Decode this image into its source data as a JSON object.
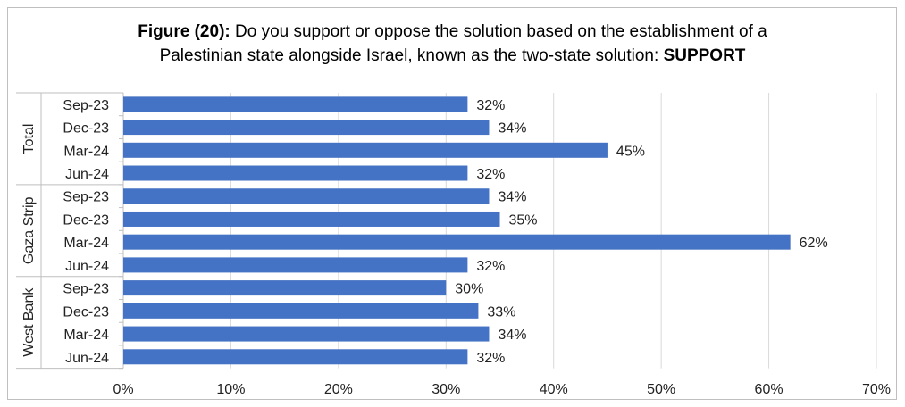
{
  "chart_data": {
    "type": "bar",
    "orientation": "horizontal",
    "title_prefix": "Figure (20):",
    "title_line1": " Do you support or oppose the solution based on the establishment of a",
    "title_line2": "Palestinian state alongside Israel, known as the two-state solution: ",
    "title_emphasis": "SUPPORT",
    "groups": [
      {
        "name": "Total",
        "categories": [
          "Sep-23",
          "Dec-23",
          "Mar-24",
          "Jun-24"
        ],
        "values": [
          32,
          34,
          45,
          32
        ]
      },
      {
        "name": "Gaza Strip",
        "categories": [
          "Sep-23",
          "Dec-23",
          "Mar-24",
          "Jun-24"
        ],
        "values": [
          34,
          35,
          62,
          32
        ]
      },
      {
        "name": "West Bank",
        "categories": [
          "Sep-23",
          "Dec-23",
          "Mar-24",
          "Jun-24"
        ],
        "values": [
          30,
          33,
          34,
          32
        ]
      }
    ],
    "value_suffix": "%",
    "xlim": [
      0,
      70
    ],
    "xticks": [
      0,
      10,
      20,
      30,
      40,
      50,
      60,
      70
    ],
    "xtick_labels": [
      "0%",
      "10%",
      "20%",
      "30%",
      "40%",
      "50%",
      "60%",
      "70%"
    ],
    "grid": true,
    "bar_color": "#4472C4",
    "grid_color": "#d9d9d9"
  }
}
